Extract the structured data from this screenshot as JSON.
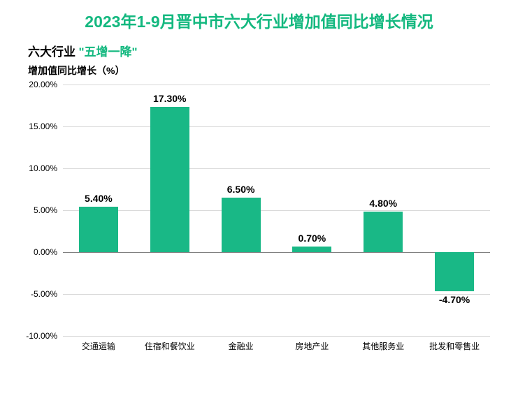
{
  "title": {
    "text": "2023年1-9月晋中市六大行业增加值同比增长情况",
    "fontsize": 23,
    "color": "#13b87f",
    "weight": 700
  },
  "subtitle": {
    "prefix": "六大行业",
    "prefix_color": "#000000",
    "highlight": "\"五增一降\"",
    "highlight_color": "#13b87f",
    "fontsize": 17
  },
  "yaxis_label": {
    "text": "增加值同比增长（%）",
    "fontsize": 14,
    "color": "#000000"
  },
  "chart": {
    "type": "bar",
    "categories": [
      "交通运输",
      "住宿和餐饮业",
      "金融业",
      "房地产业",
      "其他服务业",
      "批发和零售业"
    ],
    "values": [
      5.4,
      17.3,
      6.5,
      0.7,
      4.8,
      -4.7
    ],
    "value_labels": [
      "5.40%",
      "17.30%",
      "6.50%",
      "0.70%",
      "4.80%",
      "-4.70%"
    ],
    "bar_color": "#19b886",
    "ylim": [
      -10,
      20
    ],
    "ytick_step": 5,
    "ytick_labels": [
      "-10.00%",
      "-5.00%",
      "0.00%",
      "5.00%",
      "10.00%",
      "15.00%",
      "20.00%"
    ],
    "ytick_values": [
      -10,
      -5,
      0,
      5,
      10,
      15,
      20
    ],
    "gridline_color": "#d9d9d9",
    "zero_line_color": "#808080",
    "background_color": "#ffffff",
    "bar_width_ratio": 0.55,
    "value_label_fontsize": 14,
    "value_label_color": "#000000",
    "xtick_fontsize": 12,
    "xtick_color": "#000000",
    "ytick_fontsize": 12,
    "ytick_color": "#000000"
  }
}
